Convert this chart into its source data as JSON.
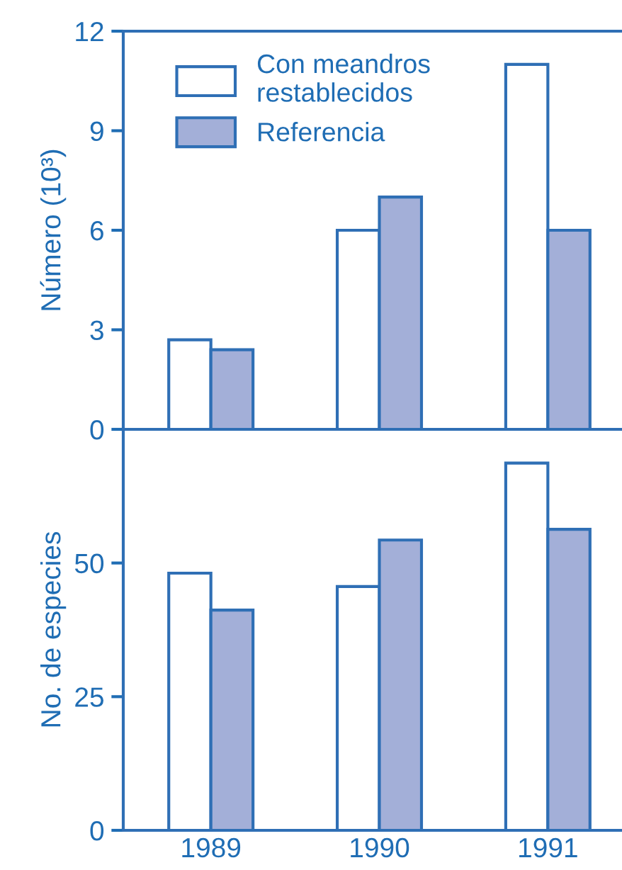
{
  "chart_data": [
    {
      "type": "bar",
      "ylabel": "Número (10³)",
      "categories": [
        "1989",
        "1990",
        "1991"
      ],
      "ylim": [
        0,
        12
      ],
      "yticks": [
        0,
        3,
        6,
        9,
        12
      ],
      "tick_labels": "y",
      "legend": "top left",
      "series": [
        {
          "name": "Con meandros\nrestablecidos",
          "color": "#ffffff",
          "values": [
            2.7,
            6.0,
            11.0
          ]
        },
        {
          "name": "Referencia",
          "color": "#a3afd8",
          "values": [
            2.4,
            7.0,
            6.0
          ]
        }
      ]
    },
    {
      "type": "bar",
      "ylabel": "No. de especies",
      "categories": [
        "1989",
        "1990",
        "1991"
      ],
      "ylim": [
        0,
        75
      ],
      "yticks": [
        0,
        25,
        50
      ],
      "series": [
        {
          "color": "#ffffff",
          "values": [
            48.1,
            45.6,
            68.7
          ]
        },
        {
          "color": "#a3afd8",
          "values": [
            41.2,
            54.3,
            56.3
          ]
        }
      ]
    }
  ]
}
